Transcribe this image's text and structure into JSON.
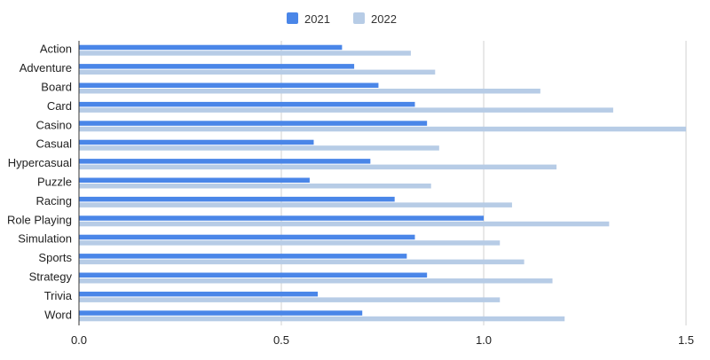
{
  "chart_data": {
    "type": "bar",
    "orientation": "horizontal",
    "categories": [
      "Action",
      "Adventure",
      "Board",
      "Card",
      "Casino",
      "Casual",
      "Hypercasual",
      "Puzzle",
      "Racing",
      "Role Playing",
      "Simulation",
      "Sports",
      "Strategy",
      "Trivia",
      "Word"
    ],
    "series": [
      {
        "name": "2021",
        "color": "#4a86e8",
        "values": [
          0.65,
          0.68,
          0.74,
          0.83,
          0.86,
          0.58,
          0.72,
          0.57,
          0.78,
          1.0,
          0.83,
          0.81,
          0.86,
          0.59,
          0.7
        ]
      },
      {
        "name": "2022",
        "color": "#b7cce6",
        "values": [
          0.82,
          0.88,
          1.14,
          1.32,
          1.5,
          0.89,
          1.18,
          0.87,
          1.07,
          1.31,
          1.04,
          1.1,
          1.17,
          1.04,
          1.2
        ]
      }
    ],
    "x_ticks": [
      "0.0",
      "0.5",
      "1.0",
      "1.5"
    ],
    "xlim": [
      0,
      1.5
    ],
    "grid": true,
    "legend_position": "top-center",
    "title": "",
    "xlabel": "",
    "ylabel": ""
  }
}
